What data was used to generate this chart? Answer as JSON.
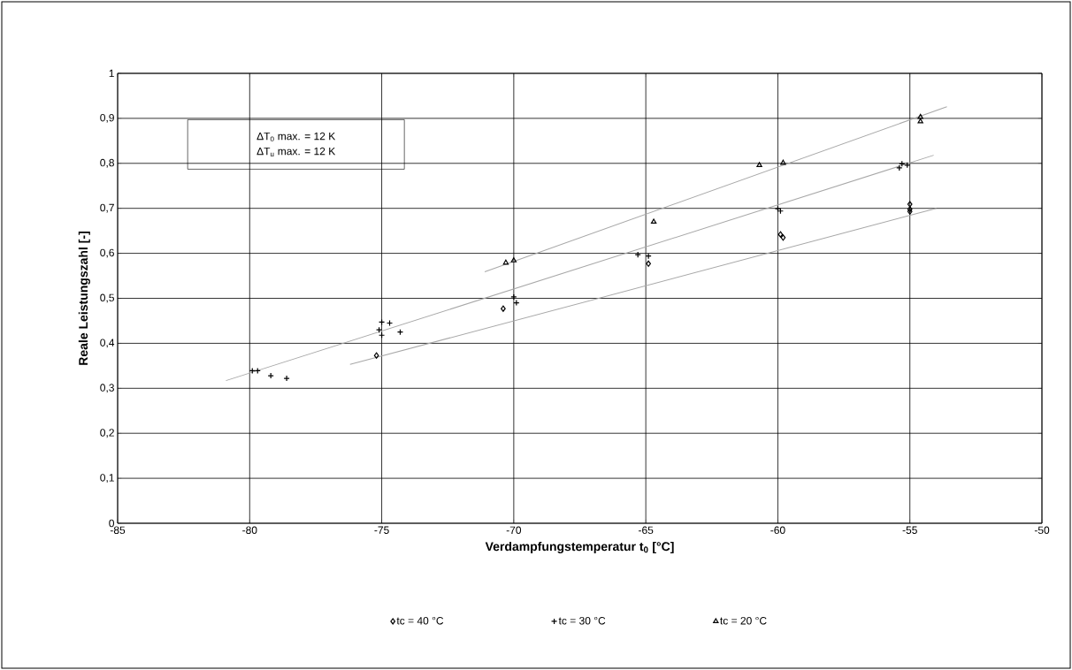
{
  "chart_data": {
    "type": "scatter",
    "xlabel": "Verdampfungstemperatur t$_{0}$ [°C]",
    "ylabel": "Reale Leistungszahl [-]",
    "xlim": [
      -85,
      -50
    ],
    "ylim": [
      0,
      1
    ],
    "xticks": [
      -85,
      -80,
      -75,
      -70,
      -65,
      -60,
      -55,
      -50
    ],
    "yticks": [
      0,
      {
        "value": 0.1,
        "label": "0,1"
      },
      {
        "value": 0.2,
        "label": "0,2"
      },
      {
        "value": 0.3,
        "label": "0,3"
      },
      {
        "value": 0.4,
        "label": "0,4"
      },
      {
        "value": 0.5,
        "label": "0,5"
      },
      {
        "value": 0.6,
        "label": "0,6"
      },
      {
        "value": 0.7,
        "label": "0,7"
      },
      {
        "value": 0.8,
        "label": "0,8"
      },
      {
        "value": 0.9,
        "label": "0,9"
      },
      1
    ],
    "grid": true,
    "legend": "bottom",
    "annotations": [
      "ΔT$_{0}$ max. = 12 K",
      "ΔT$_{u}$ max. = 12 K"
    ],
    "series": [
      {
        "name": "tc = 40 °C",
        "marker": "diamond",
        "color": "#000000",
        "x": [
          -75.2,
          -70.4,
          -64.9,
          -59.9,
          -59.8,
          -55.0,
          -55.0,
          -55.0
        ],
        "values": [
          0.373,
          0.477,
          0.577,
          0.642,
          0.635,
          0.709,
          0.698,
          0.693
        ]
      },
      {
        "name": "tc = 30 °C",
        "marker": "cross",
        "color": "#000000",
        "x": [
          -79.9,
          -79.7,
          -79.2,
          -78.6,
          -75.1,
          -75.0,
          -75.0,
          -74.7,
          -74.3,
          -70.0,
          -69.9,
          -65.3,
          -64.9,
          -60.0,
          -59.9,
          -55.4,
          -55.3,
          -55.1
        ],
        "values": [
          0.339,
          0.339,
          0.328,
          0.322,
          0.43,
          0.418,
          0.447,
          0.445,
          0.425,
          0.503,
          0.49,
          0.597,
          0.594,
          0.699,
          0.694,
          0.79,
          0.799,
          0.796
        ]
      },
      {
        "name": "tc = 20 °C",
        "marker": "triangle",
        "color": "#000000",
        "x": [
          -70.3,
          -70.0,
          -64.7,
          -60.7,
          -59.8,
          -54.6,
          -54.6
        ],
        "values": [
          0.579,
          0.584,
          0.67,
          0.796,
          0.801,
          0.893,
          0.903
        ]
      },
      {
        "type": "line",
        "marker": "none",
        "color": "#a8a8a8",
        "x": [
          -76.2,
          -54.0
        ],
        "values": [
          0.353,
          0.7
        ]
      },
      {
        "type": "line",
        "marker": "none",
        "color": "#a8a8a8",
        "x": [
          -80.9,
          -54.1
        ],
        "values": [
          0.317,
          0.818
        ]
      },
      {
        "type": "line",
        "marker": "none",
        "color": "#a8a8a8",
        "x": [
          -71.1,
          -53.6
        ],
        "values": [
          0.559,
          0.926
        ]
      }
    ]
  }
}
